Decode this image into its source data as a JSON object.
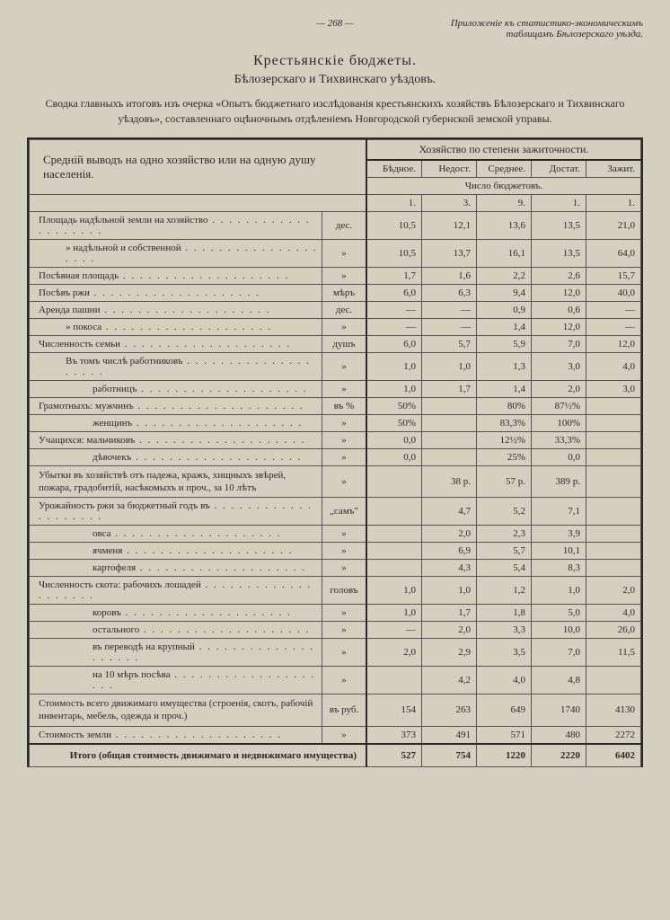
{
  "header": {
    "page_number": "— 268 —",
    "reference": "Приложеніе къ статистико-экономическимъ таблицамъ Бѣлозерскаго уѣзда."
  },
  "titles": {
    "main": "Крестьянскіе бюджеты.",
    "sub": "Бѣлозерскаго и Тихвинскаго уѣздовъ.",
    "intro": "Сводка главныхъ итоговъ изъ очерка «Опытъ бюджетнаго изслѣдованія крестьянскихъ хозяйствъ Бѣлозерскаго и Тихвинскаго уѣздовъ», составленнаго оцѣночнымъ отдѣленіемъ Новгородской губернской земской управы."
  },
  "table": {
    "left_header": "Средній выводъ на одно хозяйство или на одную душу населенія.",
    "right_header": "Хозяйство по степени зажиточности.",
    "cols": [
      "Бѣдное.",
      "Недост.",
      "Среднее.",
      "Достат.",
      "Зажит."
    ],
    "budget_row_label": "Число бюджетовъ.",
    "budget_counts": [
      "1.",
      "3.",
      "9.",
      "1.",
      "1."
    ],
    "rows": [
      {
        "label": "Площадь надѣльной земли на хозяйство",
        "indent": 0,
        "unit": "дес.",
        "vals": [
          "10,5",
          "12,1",
          "13,6",
          "13,5",
          "21,0"
        ]
      },
      {
        "label": "»       надѣльной и собственной",
        "indent": 1,
        "unit": "»",
        "vals": [
          "10,5",
          "13,7",
          "16,1",
          "13,5",
          "64,0"
        ]
      },
      {
        "label": "Посѣвная площадь",
        "indent": 0,
        "unit": "»",
        "vals": [
          "1,7",
          "1,6",
          "2,2",
          "2,6",
          "15,7"
        ]
      },
      {
        "label": "Посѣвъ ржи",
        "indent": 0,
        "unit": "мѣръ",
        "vals": [
          "6,0",
          "6,3",
          "9,4",
          "12,0",
          "40,0"
        ]
      },
      {
        "label": "Аренда пашни",
        "indent": 0,
        "unit": "дес.",
        "vals": [
          "—",
          "—",
          "0,9",
          "0,6",
          "—"
        ]
      },
      {
        "label": "»     покоса",
        "indent": 1,
        "unit": "»",
        "vals": [
          "—",
          "—",
          "1,4",
          "12,0",
          "—"
        ]
      },
      {
        "label": "Численность семьи",
        "indent": 0,
        "unit": "душъ",
        "vals": [
          "6,0",
          "5,7",
          "5,9",
          "7,0",
          "12,0"
        ]
      },
      {
        "label": "Въ томъ числѣ работниковъ",
        "indent": 1,
        "unit": "»",
        "vals": [
          "1,0",
          "1,0",
          "1,3",
          "3,0",
          "4,0"
        ]
      },
      {
        "label": "работницъ",
        "indent": 2,
        "unit": "»",
        "vals": [
          "1,0",
          "1,7",
          "1,4",
          "2,0",
          "3,0"
        ]
      },
      {
        "label": "Грамотныхъ: мужчинъ",
        "indent": 0,
        "unit": "въ %",
        "vals": [
          "50%",
          "",
          "80%",
          "87½%",
          ""
        ]
      },
      {
        "label": "женщинъ",
        "indent": 2,
        "unit": "»",
        "vals": [
          "50%",
          "",
          "83,3%",
          "100%",
          ""
        ]
      },
      {
        "label": "Учащихся: мальчиковъ",
        "indent": 0,
        "unit": "»",
        "vals": [
          "0,0",
          "",
          "12½%",
          "33,3%",
          ""
        ]
      },
      {
        "label": "дѣвочекъ",
        "indent": 2,
        "unit": "»",
        "vals": [
          "0,0",
          "",
          "25%",
          "0,0",
          ""
        ]
      },
      {
        "label": "Убытки въ хозяйствѣ отъ падежа, кражъ, хищныхъ звѣрей, пожара, градобитій, насѣкомыхъ и проч., за 10 лѣтъ",
        "indent": 0,
        "unit": "»",
        "vals": [
          "",
          "38 р.",
          "57 р.",
          "389 р.",
          ""
        ],
        "multiline": true
      },
      {
        "label": "Урожайность ржи за бюджетный годъ въ",
        "indent": 0,
        "unit": "„самъ\"",
        "vals": [
          "",
          "4,7",
          "5,2",
          "7,1",
          ""
        ]
      },
      {
        "label": "овса",
        "indent": 2,
        "unit": "»",
        "vals": [
          "",
          "2,0",
          "2,3",
          "3,9",
          ""
        ]
      },
      {
        "label": "ячменя",
        "indent": 2,
        "unit": "»",
        "vals": [
          "",
          "6,9",
          "5,7",
          "10,1",
          ""
        ]
      },
      {
        "label": "картофеля",
        "indent": 2,
        "unit": "»",
        "vals": [
          "",
          "4,3",
          "5,4",
          "8,3",
          ""
        ]
      },
      {
        "label": "Численность скота: рабочихъ лошадей",
        "indent": 0,
        "unit": "головъ",
        "vals": [
          "1,0",
          "1,0",
          "1,2",
          "1,0",
          "2,0"
        ]
      },
      {
        "label": "коровъ",
        "indent": 2,
        "unit": "»",
        "vals": [
          "1,0",
          "1,7",
          "1,8",
          "5,0",
          "4,0"
        ]
      },
      {
        "label": "остального",
        "indent": 2,
        "unit": "»",
        "vals": [
          "—",
          "2,0",
          "3,3",
          "10,0",
          "26,0"
        ]
      },
      {
        "label": "въ переводѣ на крупный",
        "indent": 2,
        "unit": "»",
        "vals": [
          "2,0",
          "2,9",
          "3,5",
          "7,0",
          "11,5"
        ]
      },
      {
        "label": "на 10 мѣръ посѣва",
        "indent": 2,
        "unit": "»",
        "vals": [
          "",
          "4,2",
          "4,0",
          "4,8",
          ""
        ]
      },
      {
        "label": "Стоимость всего движимаго имущества (строенія, скотъ, рабочій инвентарь, мебель, одежда и проч.)",
        "indent": 0,
        "unit": "въ руб.",
        "vals": [
          "154",
          "263",
          "649",
          "1740",
          "4130"
        ],
        "multiline": true
      },
      {
        "label": "Стоимость земли",
        "indent": 0,
        "unit": "»",
        "vals": [
          "373",
          "491",
          "571",
          "480",
          "2272"
        ]
      }
    ],
    "total": {
      "label": "Итого (общая стоимость движимаго и недвижимаго имущества)",
      "vals": [
        "527",
        "754",
        "1220",
        "2220",
        "6402"
      ]
    }
  },
  "styling": {
    "bg_color": "#d4d0c0",
    "text_color": "#2a2a2a",
    "border_color": "#555",
    "font_family": "Georgia, serif",
    "base_font_size": 11
  }
}
